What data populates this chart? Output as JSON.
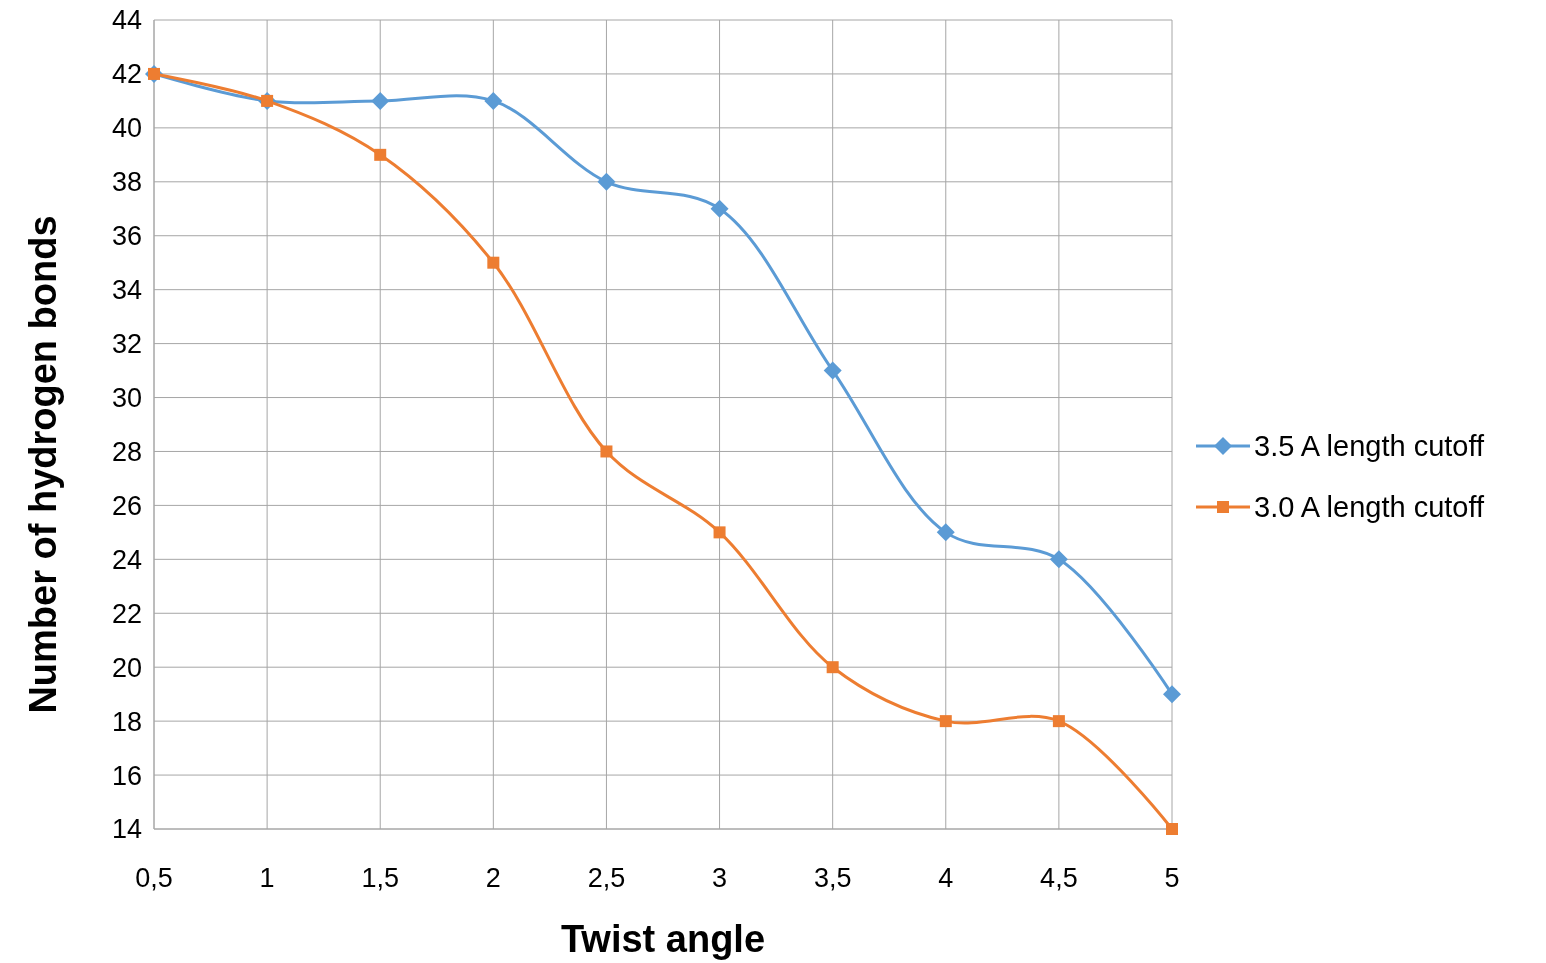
{
  "chart_data": {
    "type": "line",
    "xlabel": "Twist angle",
    "ylabel": "Number of hydrogen bonds",
    "categories": [
      "0,5",
      "1",
      "1,5",
      "2",
      "2,5",
      "3",
      "3,5",
      "4",
      "4,5",
      "5"
    ],
    "series": [
      {
        "name": "3.5 A length cutoff",
        "color": "#5b9bd5",
        "marker": "diamond",
        "values": [
          42,
          41,
          41,
          41,
          38,
          37,
          31,
          25,
          24,
          19
        ]
      },
      {
        "name": "3.0 A length cutoff",
        "color": "#ed7d31",
        "marker": "square",
        "values": [
          42,
          41,
          39,
          35,
          28,
          25,
          20,
          18,
          18,
          14
        ]
      }
    ],
    "ylim": [
      14,
      44
    ],
    "yticks": [
      14,
      16,
      18,
      20,
      22,
      24,
      26,
      28,
      30,
      32,
      34,
      36,
      38,
      40,
      42,
      44
    ],
    "grid": true,
    "legend": "right",
    "line_style": "solid"
  }
}
